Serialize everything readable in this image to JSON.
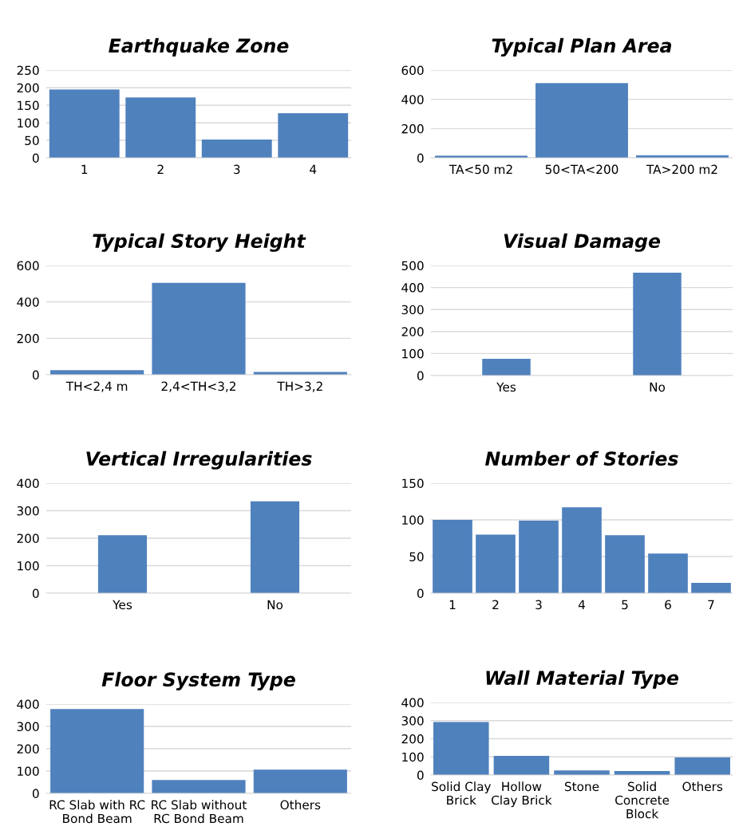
{
  "chart_data": [
    {
      "type": "bar",
      "title": "Earthquake Zone",
      "categories": [
        "1",
        "2",
        "3",
        "4"
      ],
      "values": [
        195,
        172,
        52,
        127
      ],
      "color": "#4f81bd",
      "ylim": [
        0,
        250
      ],
      "yticks": [
        0,
        50,
        100,
        150,
        200,
        250
      ],
      "grid": "y"
    },
    {
      "type": "bar",
      "title": "Typical Plan Area",
      "categories": [
        "TA<50 m2",
        "50<TA<200",
        "TA>200 m2"
      ],
      "values": [
        15,
        512,
        18
      ],
      "color": "#4f81bd",
      "ylim": [
        0,
        600
      ],
      "yticks": [
        0,
        200,
        400,
        600
      ],
      "grid": "y"
    },
    {
      "type": "bar",
      "title": "Typical Story Height",
      "categories": [
        "TH<2,4 m",
        "2,4<TH<3,2",
        "TH>3,2"
      ],
      "values": [
        25,
        505,
        15
      ],
      "color": "#4f81bd",
      "ylim": [
        0,
        600
      ],
      "yticks": [
        0,
        200,
        400,
        600
      ],
      "grid": "y"
    },
    {
      "type": "bar",
      "title": "Visual Damage",
      "categories": [
        "Yes",
        "No"
      ],
      "values": [
        76,
        467
      ],
      "color": "#4f81bd",
      "ylim": [
        0,
        500
      ],
      "yticks": [
        0,
        100,
        200,
        300,
        400,
        500
      ],
      "grid": "y"
    },
    {
      "type": "bar",
      "title": "Vertical Irregularities",
      "categories": [
        "Yes",
        "No"
      ],
      "values": [
        211,
        334
      ],
      "color": "#4f81bd",
      "ylim": [
        0,
        400
      ],
      "yticks": [
        0,
        100,
        200,
        300,
        400
      ],
      "grid": "y"
    },
    {
      "type": "bar",
      "title": "Number of Stories",
      "categories": [
        "1",
        "2",
        "3",
        "4",
        "5",
        "6",
        "7"
      ],
      "values": [
        100,
        80,
        99,
        117,
        79,
        54,
        14
      ],
      "color": "#4f81bd",
      "ylim": [
        0,
        150
      ],
      "yticks": [
        0,
        50,
        100,
        150
      ],
      "grid": "y"
    },
    {
      "type": "bar",
      "title": "Floor System Type",
      "categories": [
        "RC Slab with RC Bond Beam",
        "RC Slab without RC Bond Beam",
        "Others"
      ],
      "values": [
        378,
        60,
        106
      ],
      "color": "#4f81bd",
      "ylim": [
        0,
        400
      ],
      "yticks": [
        0,
        100,
        200,
        300,
        400
      ],
      "grid": "y"
    },
    {
      "type": "bar",
      "title": "Wall Material Type",
      "categories": [
        "Solid Clay Brick",
        "Hollow Clay Brick",
        "Stone",
        "Solid Concrete Block",
        "Others"
      ],
      "values": [
        292,
        105,
        25,
        22,
        97
      ],
      "color": "#4f81bd",
      "ylim": [
        0,
        400
      ],
      "yticks": [
        0,
        100,
        200,
        300,
        400
      ],
      "grid": "y"
    }
  ]
}
